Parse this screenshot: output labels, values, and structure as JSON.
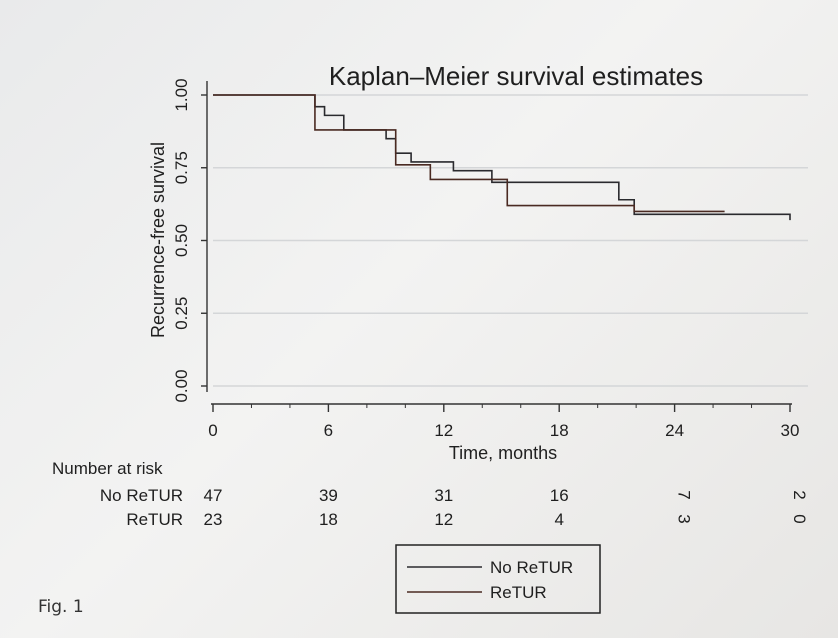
{
  "figure_label": "Fig. 1",
  "colors": {
    "no_retur": "#2a2a2e",
    "retur": "#4a2a22",
    "grid": "#d4d6d8",
    "axis": "#333333"
  },
  "chart_data": {
    "type": "line",
    "title": "Kaplan–Meier survival estimates",
    "xlabel": "Time, months",
    "ylabel": "Recurrence-free survival",
    "xlim": [
      0,
      30
    ],
    "ylim": [
      0,
      1
    ],
    "x_ticks": [
      0,
      6,
      12,
      18,
      24,
      30
    ],
    "x_tick_labels": [
      "0",
      "6",
      "12",
      "18",
      "24",
      "30"
    ],
    "y_ticks": [
      0,
      0.25,
      0.5,
      0.75,
      1
    ],
    "y_tick_labels": [
      "0.00",
      "0.25",
      "0.50",
      "0.75",
      "1.00"
    ],
    "grid": true,
    "series": [
      {
        "name": "No ReTUR",
        "color": "#2a2a2e",
        "steps": [
          [
            0,
            1.0
          ],
          [
            5.3,
            0.96
          ],
          [
            5.8,
            0.93
          ],
          [
            6.8,
            0.88
          ],
          [
            9.0,
            0.85
          ],
          [
            9.5,
            0.8
          ],
          [
            10.3,
            0.77
          ],
          [
            12.5,
            0.74
          ],
          [
            14.5,
            0.7
          ],
          [
            21.1,
            0.64
          ],
          [
            21.9,
            0.59
          ],
          [
            30.0,
            0.57
          ]
        ]
      },
      {
        "name": "ReTUR",
        "color": "#4a2a22",
        "steps": [
          [
            0,
            1.0
          ],
          [
            5.3,
            0.88
          ],
          [
            9.5,
            0.76
          ],
          [
            11.3,
            0.71
          ],
          [
            15.3,
            0.62
          ],
          [
            21.9,
            0.6
          ],
          [
            26.6,
            0.6
          ]
        ]
      }
    ],
    "number_at_risk": {
      "title": "Number at risk",
      "time_points": [
        0,
        6,
        12,
        18,
        24,
        30
      ],
      "rows": [
        {
          "label": "No ReTUR",
          "values": [
            "47",
            "39",
            "31",
            "16",
            "7",
            "2"
          ]
        },
        {
          "label": "ReTUR",
          "values": [
            "23",
            "18",
            "12",
            "4",
            "3",
            "0"
          ]
        }
      ]
    },
    "legend": {
      "position": "bottom-center",
      "entries": [
        "No ReTUR",
        "ReTUR"
      ]
    }
  }
}
